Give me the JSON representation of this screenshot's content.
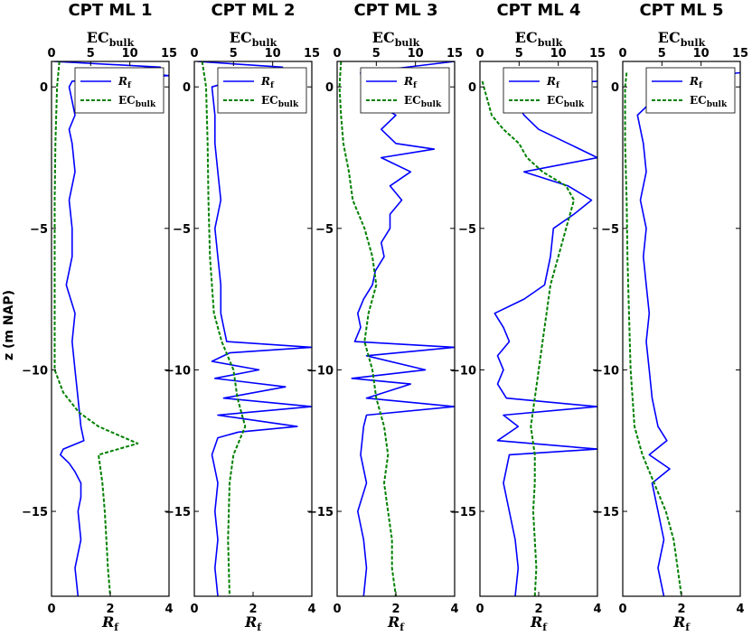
{
  "figure": {
    "ylabel": "z (m NAP)",
    "top_axis_label": "EC",
    "top_axis_label_sub": "bulk",
    "bottom_axis_label": "R",
    "bottom_axis_label_sub": "f",
    "colors": {
      "rf": "#0000ff",
      "ec": "#008000"
    }
  },
  "chart_data": [
    {
      "type": "line",
      "title": "CPT ML 1",
      "y_ticks": [
        "0",
        "−5",
        "−10",
        "−15"
      ],
      "rf_ticks": [
        "0",
        "2",
        "4"
      ],
      "ec_ticks": [
        "0",
        "5",
        "10",
        "15"
      ],
      "rf_lim": [
        0,
        4
      ],
      "ec_lim": [
        0,
        15
      ],
      "z_lim": [
        -18,
        0.9
      ],
      "legend": {
        "position": "top-right",
        "entries": [
          "R",
          "EC"
        ],
        "subs": [
          "f",
          "bulk"
        ]
      },
      "series": [
        {
          "name": "Rf",
          "axis": "bottom",
          "style": "solid",
          "z": [
            0.9,
            0.7,
            0.6,
            0.4,
            0.2,
            0,
            -0.5,
            -1.0,
            -1.5,
            -2,
            -3,
            -4,
            -5,
            -6,
            -7,
            -8,
            -9,
            -10,
            -11,
            -12,
            -12.5,
            -12.8,
            -13.0,
            -13.3,
            -13.6,
            -14,
            -14.5,
            -15,
            -16,
            -17,
            -18
          ],
          "value": [
            0.1,
            3.7,
            1.8,
            4.0,
            0.7,
            0.6,
            0.7,
            0.8,
            0.6,
            0.7,
            0.8,
            0.6,
            0.7,
            0.7,
            0.5,
            0.8,
            0.7,
            0.8,
            0.9,
            1.0,
            1.1,
            0.4,
            0.3,
            0.6,
            0.8,
            1.0,
            1.0,
            0.9,
            1.0,
            0.8,
            0.9
          ]
        },
        {
          "name": "EC",
          "axis": "top",
          "style": "dashed",
          "z": [
            0.9,
            0,
            -2,
            -4,
            -6,
            -8,
            -10,
            -10.8,
            -11.5,
            -12,
            -12.6,
            -13,
            -14,
            -15,
            -16,
            -17,
            -18
          ],
          "value": [
            1.0,
            0.7,
            0.5,
            0.4,
            0.4,
            0.4,
            0.4,
            1.5,
            3.5,
            6.0,
            11.0,
            6.0,
            6.5,
            6.8,
            7.0,
            7.2,
            7.5
          ]
        }
      ]
    },
    {
      "type": "line",
      "title": "CPT ML 2",
      "y_ticks": [
        "0",
        "−5",
        "−10",
        "−15"
      ],
      "rf_ticks": [
        "0",
        "2",
        "4"
      ],
      "ec_ticks": [
        "0",
        "5",
        "10",
        "15"
      ],
      "rf_lim": [
        0,
        4
      ],
      "ec_lim": [
        0,
        15
      ],
      "z_lim": [
        -18,
        0.9
      ],
      "legend": {
        "position": "top-right",
        "entries": [
          "R",
          "EC"
        ],
        "subs": [
          "f",
          "bulk"
        ]
      },
      "series": [
        {
          "name": "Rf",
          "axis": "bottom",
          "style": "solid",
          "z": [
            0.9,
            0.7,
            0.5,
            0,
            -1,
            -2,
            -3,
            -4,
            -5,
            -6,
            -7,
            -8,
            -8.5,
            -9.0,
            -9.2,
            -9.4,
            -9.7,
            -10.0,
            -10.3,
            -10.6,
            -11.0,
            -11.3,
            -11.6,
            -12.0,
            -12.2,
            -12.4,
            -13,
            -14,
            -15,
            -16,
            -17,
            -18
          ],
          "value": [
            0.1,
            3.0,
            2.3,
            0.6,
            0.7,
            0.7,
            0.8,
            0.9,
            0.7,
            0.8,
            0.9,
            0.9,
            1.0,
            1.1,
            4.0,
            1.2,
            0.6,
            2.2,
            0.7,
            3.1,
            1.0,
            4.0,
            0.8,
            3.5,
            1.5,
            0.8,
            0.6,
            0.8,
            0.7,
            0.8,
            0.7,
            0.8
          ]
        },
        {
          "name": "EC",
          "axis": "top",
          "style": "dashed",
          "z": [
            0.9,
            0,
            -2,
            -4,
            -6,
            -8,
            -9,
            -10,
            -11,
            -12,
            -13,
            -14,
            -16,
            -18
          ],
          "value": [
            1.0,
            1.5,
            1.7,
            1.8,
            2.0,
            2.5,
            3.5,
            5.0,
            5.5,
            6.5,
            5.0,
            4.5,
            4.3,
            4.5
          ]
        }
      ]
    },
    {
      "type": "line",
      "title": "CPT ML 3",
      "y_ticks": [
        "0",
        "−5",
        "−10",
        "−15"
      ],
      "rf_ticks": [
        "0",
        "2",
        "4"
      ],
      "ec_ticks": [
        "0",
        "5",
        "10",
        "15"
      ],
      "rf_lim": [
        0,
        4
      ],
      "ec_lim": [
        0,
        15
      ],
      "z_lim": [
        -18,
        0.9
      ],
      "legend": {
        "position": "top-right",
        "entries": [
          "R",
          "EC"
        ],
        "subs": [
          "f",
          "bulk"
        ]
      },
      "series": [
        {
          "name": "Rf",
          "axis": "bottom",
          "style": "solid",
          "z": [
            0.9,
            0.5,
            0,
            -0.5,
            -1,
            -1.5,
            -2,
            -2.2,
            -2.5,
            -3,
            -3.5,
            -4,
            -4.5,
            -5,
            -5.5,
            -6,
            -6.5,
            -7,
            -7.5,
            -8,
            -8.5,
            -9,
            -9.2,
            -9.5,
            -10,
            -10.3,
            -10.5,
            -11,
            -11.3,
            -11.6,
            -12,
            -13,
            -14,
            -15,
            -16,
            -17,
            -18
          ],
          "value": [
            4.0,
            0.8,
            0.9,
            1.2,
            2.0,
            1.5,
            2.0,
            3.3,
            1.5,
            2.5,
            1.8,
            2.2,
            1.8,
            1.8,
            1.5,
            1.6,
            1.3,
            1.2,
            0.9,
            0.7,
            0.8,
            0.6,
            4.0,
            1.0,
            3.0,
            0.5,
            2.5,
            1.0,
            4.0,
            1.0,
            0.9,
            0.8,
            1.0,
            0.7,
            0.9,
            1.0,
            0.9
          ]
        },
        {
          "name": "EC",
          "axis": "top",
          "style": "dashed",
          "z": [
            0.9,
            0,
            -1,
            -2,
            -3,
            -4,
            -5,
            -6,
            -7,
            -8,
            -9,
            -10,
            -11,
            -12,
            -13,
            -14,
            -15,
            -16,
            -17,
            -18
          ],
          "value": [
            0.5,
            0.3,
            0.5,
            0.8,
            1.5,
            2.0,
            3.5,
            4.5,
            5.0,
            4.0,
            3.5,
            4.5,
            5.0,
            6.0,
            6.5,
            6.0,
            6.5,
            7.0,
            7.0,
            7.5
          ]
        }
      ]
    },
    {
      "type": "line",
      "title": "CPT ML 4",
      "y_ticks": [
        "0",
        "−5",
        "−10",
        "−15"
      ],
      "rf_ticks": [
        "0",
        "2",
        "4"
      ],
      "ec_ticks": [
        "0",
        "5",
        "10",
        "15"
      ],
      "rf_lim": [
        0,
        4
      ],
      "ec_lim": [
        0,
        15
      ],
      "z_lim": [
        -18,
        0.9
      ],
      "legend": {
        "position": "top-right",
        "entries": [
          "R",
          "EC"
        ],
        "subs": [
          "f",
          "bulk"
        ]
      },
      "series": [
        {
          "name": "Rf",
          "axis": "bottom",
          "style": "solid",
          "z": [
            0.2,
            0,
            -0.5,
            -1,
            -1.5,
            -2,
            -2.5,
            -3,
            -3.5,
            -4,
            -4.5,
            -5,
            -6,
            -7,
            -7.5,
            -8,
            -8.5,
            -9,
            -9.5,
            -10,
            -10.5,
            -11,
            -11.3,
            -11.6,
            -12,
            -12.5,
            -12.8,
            -13,
            -14,
            -15,
            -16,
            -17,
            -18
          ],
          "value": [
            4.0,
            1.0,
            1.2,
            1.5,
            2.0,
            3.0,
            4.0,
            1.5,
            3.0,
            3.8,
            3.2,
            2.5,
            2.4,
            2.2,
            1.5,
            0.5,
            0.8,
            1.0,
            0.6,
            0.8,
            0.6,
            0.9,
            4.0,
            0.8,
            1.3,
            0.6,
            4.0,
            1.0,
            0.8,
            1.0,
            1.2,
            1.3,
            1.2
          ]
        },
        {
          "name": "EC",
          "axis": "top",
          "style": "dashed",
          "z": [
            0.2,
            0,
            -1,
            -1.5,
            -2,
            -2.5,
            -3,
            -3.5,
            -4,
            -4.5,
            -5,
            -6,
            -7,
            -8,
            -9,
            -10,
            -11,
            -12,
            -13,
            -14,
            -15,
            -16,
            -17,
            -18
          ],
          "value": [
            0.3,
            0.5,
            1.5,
            3.0,
            5.0,
            6.0,
            8.0,
            11.0,
            12.0,
            11.5,
            11.0,
            10.0,
            9.0,
            8.5,
            8.0,
            7.5,
            7.0,
            6.5,
            7.0,
            7.0,
            6.8,
            7.0,
            7.2,
            7.0
          ]
        }
      ]
    },
    {
      "type": "line",
      "title": "CPT ML 5",
      "y_ticks": [
        "0",
        "−5",
        "−10",
        "−15"
      ],
      "rf_ticks": [
        "0",
        "2",
        "4"
      ],
      "ec_ticks": [
        "0",
        "5",
        "10",
        "15"
      ],
      "rf_lim": [
        0,
        4
      ],
      "ec_lim": [
        0,
        15
      ],
      "z_lim": [
        -18,
        0.9
      ],
      "legend": {
        "position": "top-right",
        "entries": [
          "R",
          "EC"
        ],
        "subs": [
          "f",
          "bulk"
        ]
      },
      "series": [
        {
          "name": "Rf",
          "axis": "bottom",
          "style": "solid",
          "z": [
            0.5,
            0.3,
            0,
            -0.5,
            -1,
            -2,
            -3,
            -4,
            -5,
            -6,
            -7,
            -8,
            -9,
            -10,
            -11,
            -12,
            -12.5,
            -13,
            -13.5,
            -14,
            -15,
            -16,
            -17,
            -18
          ],
          "value": [
            4.0,
            2.0,
            1.5,
            1.0,
            0.5,
            0.7,
            0.8,
            0.6,
            0.8,
            0.7,
            0.8,
            0.9,
            0.8,
            0.9,
            1.0,
            1.2,
            1.5,
            0.9,
            1.6,
            1.0,
            1.2,
            1.4,
            1.2,
            1.4
          ]
        },
        {
          "name": "EC",
          "axis": "top",
          "style": "dashed",
          "z": [
            0.5,
            0,
            -2,
            -4,
            -6,
            -8,
            -10,
            -12,
            -13,
            -14,
            -15,
            -16,
            -17,
            -18
          ],
          "value": [
            0.5,
            0.3,
            0.3,
            0.5,
            0.6,
            0.8,
            1.0,
            1.5,
            2.5,
            4.0,
            5.5,
            6.5,
            7.0,
            7.5
          ]
        }
      ]
    }
  ]
}
